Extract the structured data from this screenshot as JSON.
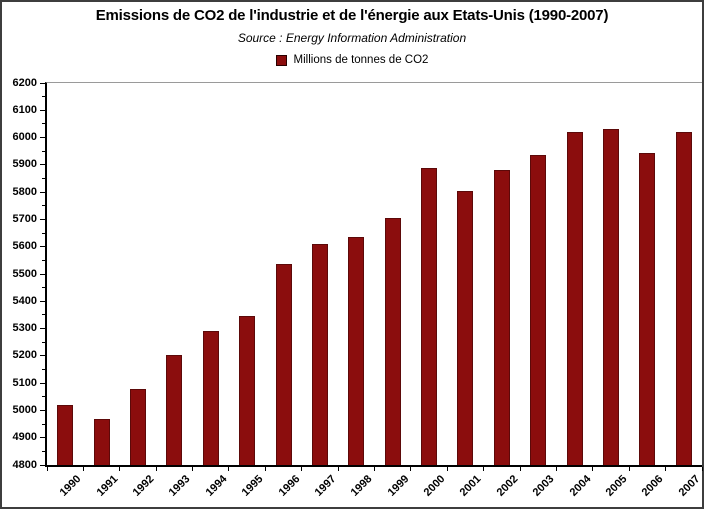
{
  "header": {
    "title": "Emissions de CO2 de l'industrie et de l'énergie aux Etats-Unis (1990-2007)",
    "subtitle": "Source : Energy Information Administration",
    "legend_label": "Millions de tonnes de CO2"
  },
  "colors": {
    "bar_fill": "#8B0D0D",
    "bar_border": "#5C0909",
    "axis_line": "#000000",
    "plot_frame_line": "#9A9A9A",
    "outer_border": "#3D3D3D",
    "text": "#000000",
    "background": "#FFFFFF"
  },
  "chart_data": {
    "type": "bar",
    "title": "Emissions de CO2 de l'industrie et de l'énergie aux Etats-Unis (1990-2007)",
    "subtitle": "Source : Energy Information Administration",
    "legend": [
      "Millions de tonnes de CO2"
    ],
    "legend_position": "top-center",
    "ylabel": "",
    "xlabel": "",
    "unit": "Millions de tonnes de CO2",
    "categories": [
      "1990",
      "1991",
      "1992",
      "1993",
      "1994",
      "1995",
      "1996",
      "1997",
      "1998",
      "1999",
      "2000",
      "2001",
      "2002",
      "2003",
      "2004",
      "2005",
      "2006",
      "2007"
    ],
    "values": [
      5020,
      4970,
      5080,
      5205,
      5290,
      5345,
      5535,
      5610,
      5635,
      5705,
      5890,
      5805,
      5880,
      5935,
      6020,
      6030,
      5945,
      6020
    ],
    "ylim": [
      4800,
      6200
    ],
    "yticks": [
      4800,
      4900,
      5000,
      5100,
      5200,
      5300,
      5400,
      5500,
      5600,
      5700,
      5800,
      5900,
      6000,
      6100,
      6200
    ],
    "ytick_step": 100,
    "ytick_minor_step": 50,
    "grid": false
  }
}
